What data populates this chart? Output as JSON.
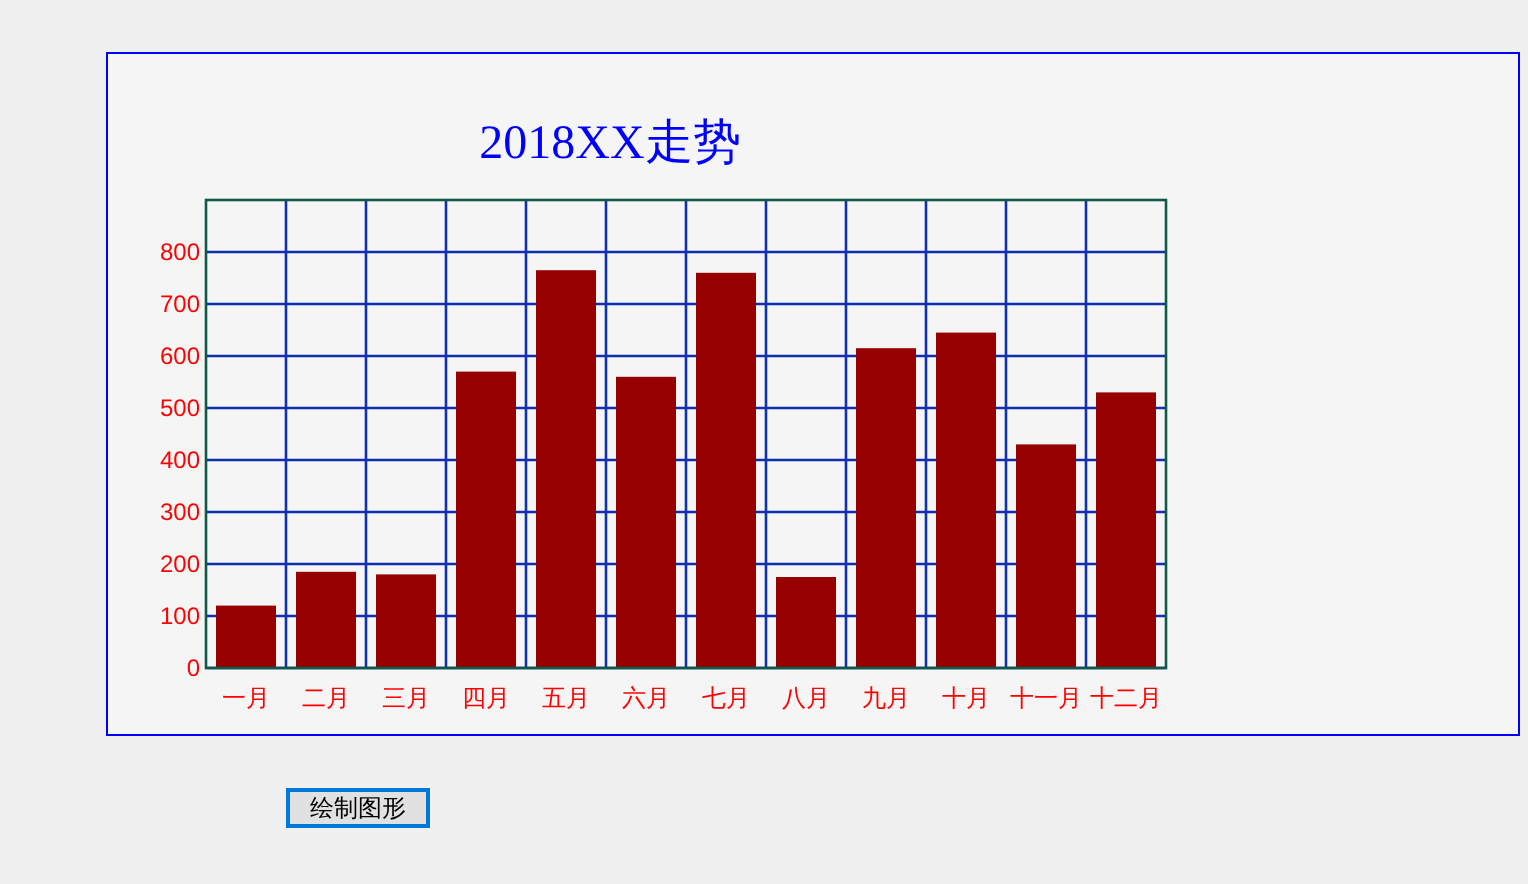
{
  "chart_data": {
    "type": "bar",
    "title": "2018XX走势",
    "categories": [
      "一月",
      "二月",
      "三月",
      "四月",
      "五月",
      "六月",
      "七月",
      "八月",
      "九月",
      "十月",
      "十一月",
      "十二月"
    ],
    "values": [
      120,
      185,
      180,
      570,
      765,
      560,
      760,
      175,
      615,
      645,
      430,
      530
    ],
    "color": "#960000",
    "ylim": [
      0,
      900
    ],
    "yticks": [
      0,
      100,
      200,
      300,
      400,
      500,
      600,
      700,
      800
    ],
    "grid": true,
    "annotations": [
      "绘制图形"
    ]
  }
}
